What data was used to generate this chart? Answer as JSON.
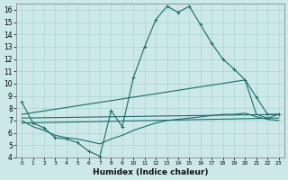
{
  "xlabel": "Humidex (Indice chaleur)",
  "xlim": [
    -0.5,
    23.5
  ],
  "ylim": [
    4,
    16.5
  ],
  "yticks": [
    4,
    5,
    6,
    7,
    8,
    9,
    10,
    11,
    12,
    13,
    14,
    15,
    16
  ],
  "xticks": [
    0,
    1,
    2,
    3,
    4,
    5,
    6,
    7,
    8,
    9,
    10,
    11,
    12,
    13,
    14,
    15,
    16,
    17,
    18,
    19,
    20,
    21,
    22,
    23
  ],
  "bg_color": "#cce8e8",
  "line_color": "#1a6b6b",
  "grid_color": "#aad4d4",
  "lines": [
    {
      "x": [
        0,
        1,
        2,
        3,
        4,
        5,
        6,
        7,
        8,
        9,
        10,
        11,
        12,
        13,
        14,
        15,
        16,
        17,
        18,
        19,
        20,
        21,
        22,
        23
      ],
      "y": [
        8.5,
        6.8,
        6.4,
        5.6,
        5.5,
        5.2,
        4.5,
        4.1,
        7.8,
        6.5,
        10.5,
        13.0,
        15.2,
        16.3,
        15.8,
        16.3,
        14.8,
        13.3,
        12.0,
        11.2,
        10.3,
        8.9,
        7.5,
        7.5
      ],
      "marker": "+"
    },
    {
      "x": [
        0,
        20,
        21,
        22,
        23
      ],
      "y": [
        7.5,
        10.3,
        7.5,
        7.2,
        7.5
      ],
      "marker": null
    },
    {
      "x": [
        0,
        23
      ],
      "y": [
        7.2,
        7.5
      ],
      "marker": null
    },
    {
      "x": [
        0,
        23
      ],
      "y": [
        6.8,
        7.2
      ],
      "marker": null
    },
    {
      "x": [
        0,
        1,
        2,
        3,
        4,
        5,
        6,
        7,
        8,
        9,
        10,
        11,
        12,
        13,
        14,
        15,
        16,
        17,
        18,
        19,
        20,
        21,
        22,
        23
      ],
      "y": [
        7.0,
        6.5,
        6.2,
        5.8,
        5.6,
        5.5,
        5.3,
        5.1,
        5.5,
        5.8,
        6.2,
        6.5,
        6.8,
        7.0,
        7.1,
        7.2,
        7.3,
        7.4,
        7.5,
        7.5,
        7.6,
        7.3,
        7.1,
        7.0
      ],
      "marker": null
    }
  ]
}
